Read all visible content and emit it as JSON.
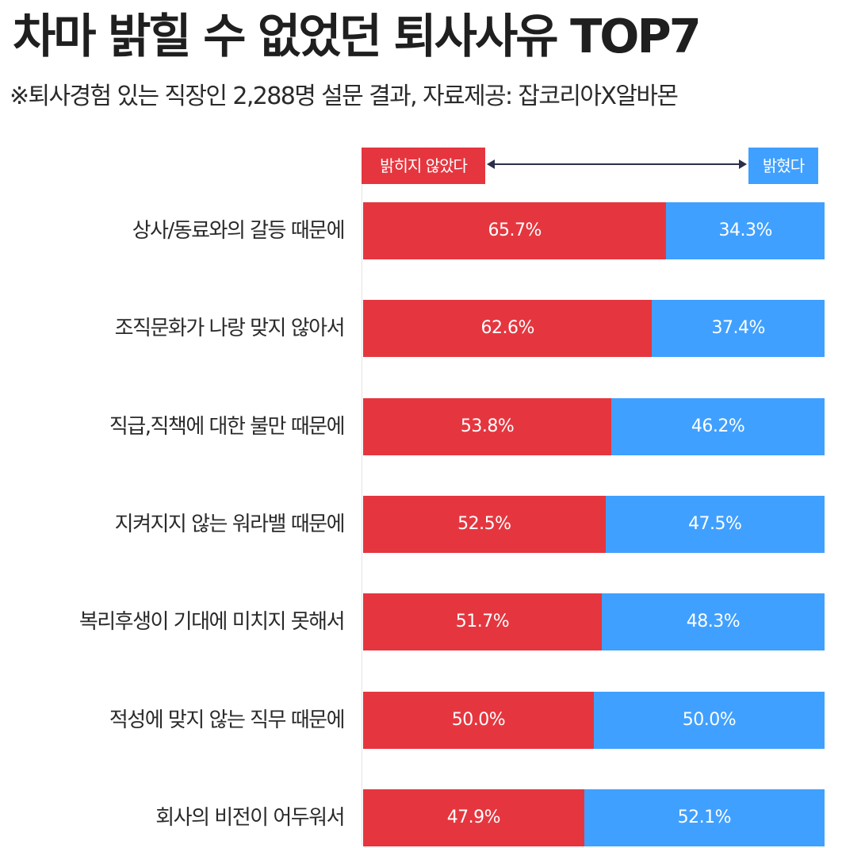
{
  "header": {
    "title": "차마 밝힐 수 없었던 퇴사사유 TOP7",
    "subtitle": "※퇴사경험 있는 직장인 2,288명 설문 결과, 자료제공: 잡코리아X알바몬"
  },
  "colors": {
    "hidden": "#e5363f",
    "revealed": "#40a0ff",
    "arrow": "#2b2f4a"
  },
  "chart_data": {
    "type": "bar",
    "stacked": true,
    "orientation": "horizontal",
    "unit": "%",
    "categories": [
      "상사/동료와의 갈등 때문에",
      "조직문화가 나랑 맞지 않아서",
      "직급,직책에 대한 불만 때문에",
      "지켜지지 않는 워라밸 때문에",
      "복리후생이 기대에 미치지 못해서",
      "적성에 맞지 않는 직무 때문에",
      "회사의 비전이 어두워서"
    ],
    "series": [
      {
        "name": "밝히지 않았다",
        "values": [
          65.7,
          62.6,
          53.8,
          52.5,
          51.7,
          50.0,
          47.9
        ],
        "labels": [
          "65.7%",
          "62.6%",
          "53.8%",
          "52.5%",
          "51.7%",
          "50.0%",
          "47.9%"
        ]
      },
      {
        "name": "밝혔다",
        "values": [
          34.3,
          37.4,
          46.2,
          47.5,
          48.3,
          50.0,
          52.1
        ],
        "labels": [
          "34.3%",
          "37.4%",
          "46.2%",
          "47.5%",
          "48.3%",
          "50.0%",
          "52.1%"
        ]
      }
    ],
    "xlim": [
      0,
      100
    ],
    "legend": "top"
  }
}
